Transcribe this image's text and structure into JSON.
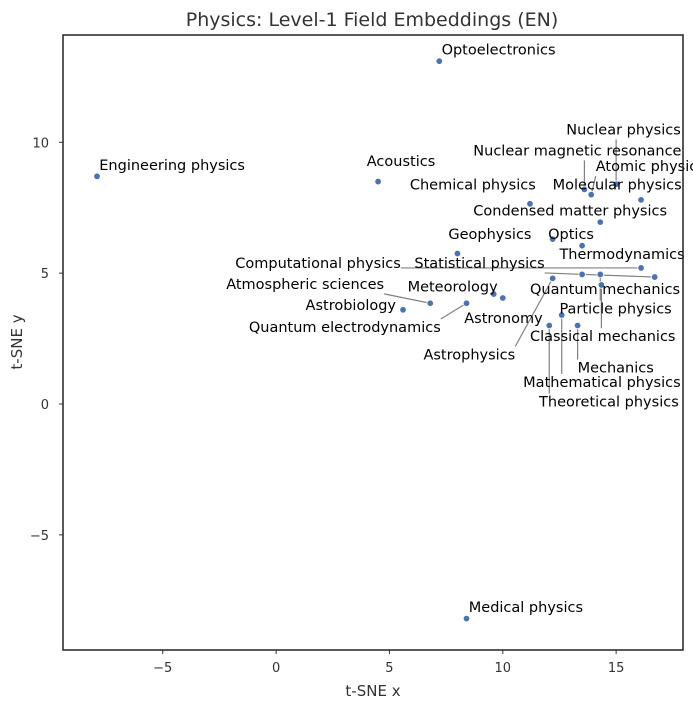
{
  "chart_data": {
    "type": "scatter",
    "title": "Physics: Level-1 Field Embeddings (EN)",
    "xlabel": "t-SNE x",
    "ylabel": "t-SNE y",
    "xlim": [
      -9.4,
      17.95
    ],
    "ylim": [
      -9.4,
      14.1
    ],
    "xticks": [
      -5,
      0,
      5,
      10,
      15
    ],
    "yticks": [
      -5,
      0,
      5,
      10
    ],
    "grid": false,
    "colors": {
      "point": "#4c72b0",
      "leader": "#808080",
      "frame": "#222222"
    },
    "points": [
      {
        "label": "Optoelectronics",
        "x": 7.2,
        "y": 13.1,
        "lx": 7.3,
        "ly": 13.35
      },
      {
        "label": "Engineering physics",
        "x": -7.9,
        "y": 8.7,
        "lx": -7.8,
        "ly": 8.95
      },
      {
        "label": "Acoustics",
        "x": 4.5,
        "y": 8.5,
        "lx": 4.0,
        "ly": 9.1
      },
      {
        "label": "Nuclear physics",
        "x": 15.0,
        "y": 8.4,
        "lx": 12.8,
        "ly": 10.3
      },
      {
        "label": "Nuclear magnetic resonance",
        "x": 13.6,
        "y": 8.2,
        "lx": 8.7,
        "ly": 9.5
      },
      {
        "label": "Atomic physics",
        "x": 13.9,
        "y": 8.0,
        "lx": 14.1,
        "ly": 8.9
      },
      {
        "label": "Chemical physics",
        "x": 11.2,
        "y": 7.65,
        "lx": 5.9,
        "ly": 8.2
      },
      {
        "label": "Molecular physics",
        "x": 16.1,
        "y": 7.8,
        "lx": 12.2,
        "ly": 8.2
      },
      {
        "label": "Condensed matter physics",
        "x": 14.3,
        "y": 6.95,
        "lx": 8.7,
        "ly": 7.2
      },
      {
        "label": "Optics",
        "x": 12.2,
        "y": 6.3,
        "lx": 12.0,
        "ly": 6.3
      },
      {
        "label": "Geophysics",
        "x": 8.0,
        "y": 5.75,
        "lx": 7.6,
        "ly": 6.3
      },
      {
        "label": "Thermodynamics",
        "x": 13.5,
        "y": 6.05,
        "lx": 12.5,
        "ly": 5.55
      },
      {
        "label": "Computational physics",
        "x": 16.1,
        "y": 5.2,
        "lx": -1.8,
        "ly": 5.2
      },
      {
        "label": "Statistical physics",
        "x": 16.7,
        "y": 4.85,
        "lx": 6.1,
        "ly": 5.2
      },
      {
        "label": "Atmospheric sciences",
        "x": 6.8,
        "y": 3.85,
        "lx": -2.2,
        "ly": 4.4
      },
      {
        "label": "Meteorology",
        "x": 9.6,
        "y": 4.2,
        "lx": 5.8,
        "ly": 4.3
      },
      {
        "label": "Quantum mechanics",
        "x": 13.5,
        "y": 4.95,
        "lx": 11.2,
        "ly": 4.2
      },
      {
        "label": "Astrobiology",
        "x": 5.6,
        "y": 3.6,
        "lx": 1.3,
        "ly": 3.6
      },
      {
        "label": "Particle physics",
        "x": 14.3,
        "y": 4.95,
        "lx": 12.5,
        "ly": 3.45
      },
      {
        "label": "Astronomy",
        "x": 10.0,
        "y": 4.05,
        "lx": 8.3,
        "ly": 3.1
      },
      {
        "label": "Quantum electrodynamics",
        "x": 8.4,
        "y": 3.85,
        "lx": -1.2,
        "ly": 2.75
      },
      {
        "label": "Classical mechanics",
        "x": 14.35,
        "y": 4.55,
        "lx": 11.2,
        "ly": 2.4
      },
      {
        "label": "Astrophysics",
        "x": 12.2,
        "y": 4.8,
        "lx": 6.5,
        "ly": 1.7
      },
      {
        "label": "Mechanics",
        "x": 13.3,
        "y": 3.0,
        "lx": 13.3,
        "ly": 1.2
      },
      {
        "label": "Mathematical physics",
        "x": 12.6,
        "y": 3.4,
        "lx": 10.9,
        "ly": 0.65
      },
      {
        "label": "Theoretical physics",
        "x": 12.05,
        "y": 3.0,
        "lx": 11.6,
        "ly": -0.1
      },
      {
        "label": "Medical physics",
        "x": 8.4,
        "y": -8.2,
        "lx": 8.5,
        "ly": -7.95
      }
    ]
  }
}
